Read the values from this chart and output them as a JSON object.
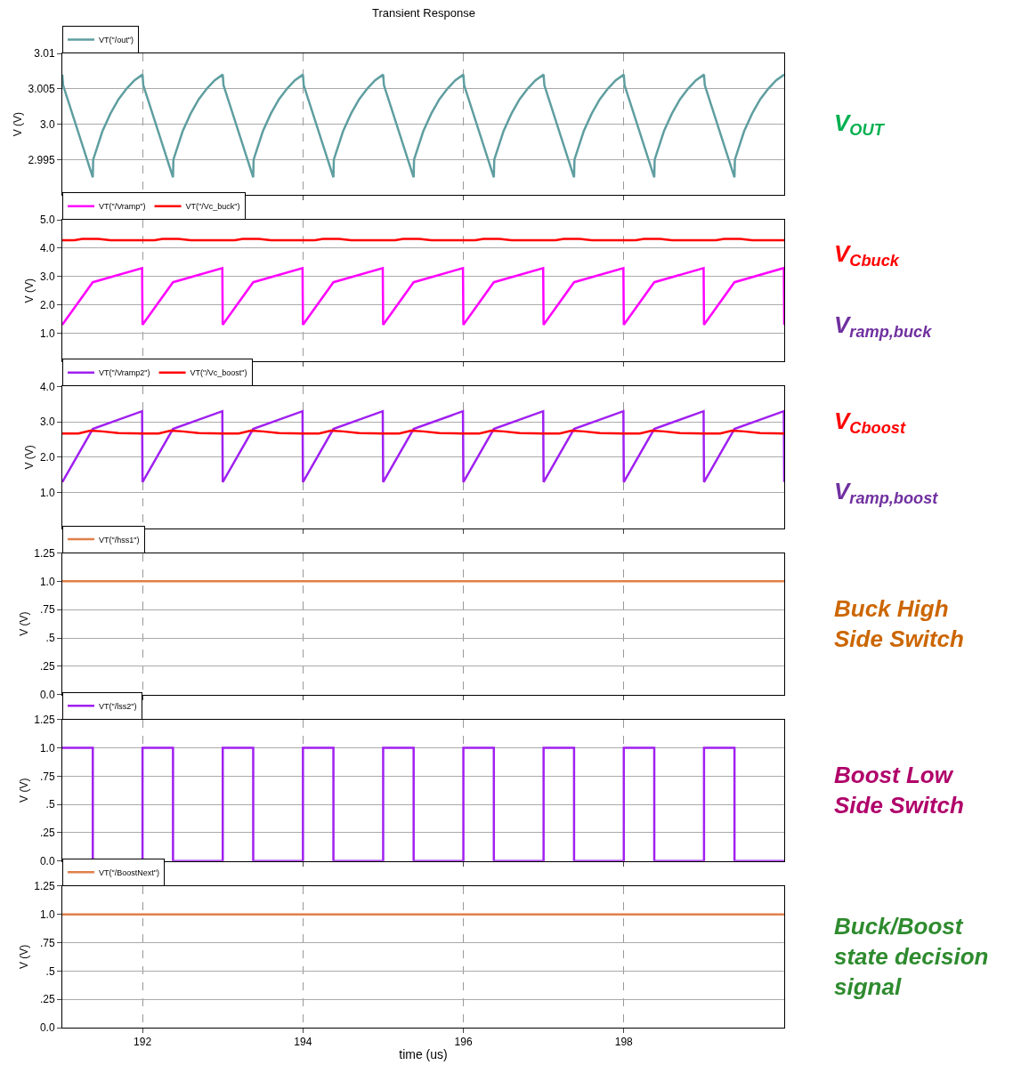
{
  "chart_data": [
    {
      "type": "line",
      "title": "Transient Response",
      "ylabel": "V (V)",
      "xlim": [
        191,
        200
      ],
      "xticks": [
        192,
        194,
        196,
        198
      ],
      "ylim": [
        2.99,
        3.01
      ],
      "yticks": [
        2.995,
        {
          "value": 3,
          "label": "3.0"
        },
        3.005,
        3.01
      ],
      "grid": true,
      "legend": "top left",
      "tick_labels": "y",
      "annotations": [
        "V$_{OUT}$"
      ],
      "series": [
        {
          "name": "VT(\"/out\")",
          "color": "#5f9ea0",
          "x": [
            191,
            191.01,
            191.38,
            191.385,
            191.5,
            191.6,
            191.7,
            191.8,
            191.9,
            192,
            192.01,
            192.38,
            192.385,
            192.5,
            192.6,
            192.7,
            192.8,
            192.9,
            193,
            193.01,
            193.38,
            193.385,
            193.5,
            193.6,
            193.7,
            193.8,
            193.9,
            194,
            194.01,
            194.38,
            194.385,
            194.5,
            194.6,
            194.7,
            194.8,
            194.9,
            195,
            195.01,
            195.38,
            195.385,
            195.5,
            195.6,
            195.7,
            195.8,
            195.9,
            196,
            196.01,
            196.38,
            196.385,
            196.5,
            196.6,
            196.7,
            196.8,
            196.9,
            197,
            197.01,
            197.38,
            197.385,
            197.5,
            197.6,
            197.7,
            197.8,
            197.9,
            198,
            198.01,
            198.38,
            198.385,
            198.5,
            198.6,
            198.7,
            198.8,
            198.9,
            199,
            199.01,
            199.38,
            199.385,
            199.5,
            199.6,
            199.7,
            199.8,
            199.9,
            200
          ],
          "values": [
            3.007,
            3.0055,
            2.9925,
            2.995,
            2.999,
            3.0015,
            3.0035,
            3.005,
            3.0062,
            3.007,
            3.0055,
            2.9925,
            2.995,
            2.999,
            3.0015,
            3.0035,
            3.005,
            3.0062,
            3.007,
            3.0055,
            2.9925,
            2.995,
            2.999,
            3.0015,
            3.0035,
            3.005,
            3.0062,
            3.007,
            3.0055,
            2.9925,
            2.995,
            2.999,
            3.0015,
            3.0035,
            3.005,
            3.0062,
            3.007,
            3.0055,
            2.9925,
            2.995,
            2.999,
            3.0015,
            3.0035,
            3.005,
            3.0062,
            3.007,
            3.0055,
            2.9925,
            2.995,
            2.999,
            3.0015,
            3.0035,
            3.005,
            3.0062,
            3.007,
            3.0055,
            2.9925,
            2.995,
            2.999,
            3.0015,
            3.0035,
            3.005,
            3.0062,
            3.007,
            3.0055,
            2.9925,
            2.995,
            2.999,
            3.0015,
            3.0035,
            3.005,
            3.0062,
            3.007,
            3.0055,
            2.9925,
            2.995,
            2.999,
            3.0015,
            3.0035,
            3.005,
            3.0062,
            3.007
          ]
        }
      ]
    },
    {
      "type": "line",
      "ylabel": "V (V)",
      "xlim": [
        191,
        200
      ],
      "xticks": [
        192,
        194,
        196,
        198
      ],
      "ylim": [
        0,
        5
      ],
      "yticks": [
        {
          "value": 1,
          "label": "1.0"
        },
        {
          "value": 2,
          "label": "2.0"
        },
        {
          "value": 3,
          "label": "3.0"
        },
        {
          "value": 4,
          "label": "4.0"
        },
        {
          "value": 5,
          "label": "5.0"
        }
      ],
      "grid": true,
      "legend": "top left",
      "tick_labels": "y",
      "annotations": [
        "V$_{Cbuck}$",
        "V$_{ramp,buck}$"
      ],
      "series": [
        {
          "name": "VT(\"/Vramp\")",
          "color": "#ff00ff",
          "x": [
            191,
            191.38,
            191.995,
            192,
            192.38,
            192.995,
            193,
            193.38,
            193.995,
            194,
            194.38,
            194.995,
            195,
            195.38,
            195.995,
            196,
            196.38,
            196.995,
            197,
            197.38,
            197.995,
            198,
            198.38,
            198.995,
            199,
            199.38,
            199.995,
            200
          ],
          "values": [
            1.3,
            2.8,
            3.3,
            1.3,
            2.8,
            3.3,
            1.3,
            2.8,
            3.3,
            1.3,
            2.8,
            3.3,
            1.3,
            2.8,
            3.3,
            1.3,
            2.8,
            3.3,
            1.3,
            2.8,
            3.3,
            1.3,
            2.8,
            3.3,
            1.3,
            2.8,
            3.3,
            1.3
          ]
        },
        {
          "name": "VT(\"/Vc_buck\")",
          "color": "#ff0000",
          "x": [
            191,
            191.15,
            191.25,
            191.45,
            191.6,
            192,
            192.15,
            192.25,
            192.45,
            192.6,
            193,
            193.15,
            193.25,
            193.45,
            193.6,
            194,
            194.15,
            194.25,
            194.45,
            194.6,
            195,
            195.15,
            195.25,
            195.45,
            195.6,
            196,
            196.15,
            196.25,
            196.45,
            196.6,
            197,
            197.15,
            197.25,
            197.45,
            197.6,
            198,
            198.15,
            198.25,
            198.45,
            198.6,
            199,
            199.15,
            199.25,
            199.45,
            199.6,
            200
          ],
          "values": [
            4.28,
            4.28,
            4.33,
            4.33,
            4.28,
            4.28,
            4.28,
            4.33,
            4.33,
            4.28,
            4.28,
            4.28,
            4.33,
            4.33,
            4.28,
            4.28,
            4.28,
            4.33,
            4.33,
            4.28,
            4.28,
            4.28,
            4.33,
            4.33,
            4.28,
            4.28,
            4.28,
            4.33,
            4.33,
            4.28,
            4.28,
            4.28,
            4.33,
            4.33,
            4.28,
            4.28,
            4.28,
            4.33,
            4.33,
            4.28,
            4.28,
            4.28,
            4.33,
            4.33,
            4.28,
            4.28
          ]
        }
      ]
    },
    {
      "type": "line",
      "ylabel": "V (V)",
      "xlim": [
        191,
        200
      ],
      "xticks": [
        192,
        194,
        196,
        198
      ],
      "ylim": [
        0,
        4
      ],
      "yticks": [
        {
          "value": 1,
          "label": "1.0"
        },
        {
          "value": 2,
          "label": "2.0"
        },
        {
          "value": 3,
          "label": "3.0"
        },
        {
          "value": 4,
          "label": "4.0"
        }
      ],
      "grid": true,
      "legend": "top left",
      "tick_labels": "y",
      "annotations": [
        "V$_{Cboost}$",
        "V$_{ramp,boost}$"
      ],
      "series": [
        {
          "name": "VT(\"/Vramp2\")",
          "color": "#a020f0",
          "x": [
            191,
            191.38,
            191.995,
            192,
            192.38,
            192.995,
            193,
            193.38,
            193.995,
            194,
            194.38,
            194.995,
            195,
            195.38,
            195.995,
            196,
            196.38,
            196.995,
            197,
            197.38,
            197.995,
            198,
            198.38,
            198.995,
            199,
            199.38,
            199.995,
            200
          ],
          "values": [
            1.3,
            2.8,
            3.3,
            1.3,
            2.8,
            3.3,
            1.3,
            2.8,
            3.3,
            1.3,
            2.8,
            3.3,
            1.3,
            2.8,
            3.3,
            1.3,
            2.8,
            3.3,
            1.3,
            2.8,
            3.3,
            1.3,
            2.8,
            3.3,
            1.3,
            2.8,
            3.3,
            1.3
          ]
        },
        {
          "name": "VT(\"/Vc_boost\")",
          "color": "#ff0000",
          "x": [
            191,
            191.2,
            191.35,
            191.5,
            191.7,
            192,
            192.2,
            192.35,
            192.5,
            192.7,
            193,
            193.2,
            193.35,
            193.5,
            193.7,
            194,
            194.2,
            194.35,
            194.5,
            194.7,
            195,
            195.2,
            195.35,
            195.5,
            195.7,
            196,
            196.2,
            196.35,
            196.5,
            196.7,
            197,
            197.2,
            197.35,
            197.5,
            197.7,
            198,
            198.2,
            198.35,
            198.5,
            198.7,
            199,
            199.2,
            199.35,
            199.5,
            199.7,
            200
          ],
          "values": [
            2.67,
            2.67,
            2.75,
            2.73,
            2.68,
            2.67,
            2.67,
            2.75,
            2.73,
            2.68,
            2.67,
            2.67,
            2.75,
            2.73,
            2.68,
            2.67,
            2.67,
            2.75,
            2.73,
            2.68,
            2.67,
            2.67,
            2.75,
            2.73,
            2.68,
            2.67,
            2.67,
            2.75,
            2.73,
            2.68,
            2.67,
            2.67,
            2.75,
            2.73,
            2.68,
            2.67,
            2.67,
            2.75,
            2.73,
            2.68,
            2.67,
            2.67,
            2.75,
            2.73,
            2.68,
            2.67
          ]
        }
      ]
    },
    {
      "type": "line",
      "ylabel": "V (V)",
      "xlim": [
        191,
        200
      ],
      "xticks": [
        192,
        194,
        196,
        198
      ],
      "ylim": [
        0,
        1.25
      ],
      "yticks": [
        {
          "value": 0,
          "label": "0.0"
        },
        {
          "value": 0.25,
          "label": ".25"
        },
        {
          "value": 0.5,
          "label": ".5"
        },
        {
          "value": 0.75,
          "label": ".75"
        },
        {
          "value": 1,
          "label": "1.0"
        },
        1.25
      ],
      "grid": true,
      "legend": "top left",
      "tick_labels": "y",
      "annotations": [
        "Buck High\nSide Switch"
      ],
      "series": [
        {
          "name": "VT(\"/hss1\")",
          "color": "#e0804a",
          "x": [
            191,
            200
          ],
          "values": [
            1.0,
            1.0
          ]
        }
      ]
    },
    {
      "type": "step",
      "ylabel": "V (V)",
      "xlim": [
        191,
        200
      ],
      "xticks": [
        192,
        194,
        196,
        198
      ],
      "ylim": [
        0,
        1.25
      ],
      "yticks": [
        {
          "value": 0,
          "label": "0.0"
        },
        {
          "value": 0.25,
          "label": ".25"
        },
        {
          "value": 0.5,
          "label": ".5"
        },
        {
          "value": 0.75,
          "label": ".75"
        },
        {
          "value": 1,
          "label": "1.0"
        },
        1.25
      ],
      "grid": true,
      "legend": "top left",
      "tick_labels": "y",
      "annotations": [
        "Boost Low\nSide Switch"
      ],
      "series": [
        {
          "name": "VT(\"/lss2\")",
          "color": "#a020f0",
          "x": [
            191,
            191.38,
            192,
            192.38,
            193,
            193.38,
            194,
            194.38,
            195,
            195.38,
            196,
            196.38,
            197,
            197.38,
            198,
            198.38,
            199,
            199.38,
            200
          ],
          "values": [
            1.0,
            0.0,
            1.0,
            0.0,
            1.0,
            0.0,
            1.0,
            0.0,
            1.0,
            0.0,
            1.0,
            0.0,
            1.0,
            0.0,
            1.0,
            0.0,
            1.0,
            0.0,
            0.0
          ]
        }
      ]
    },
    {
      "type": "line",
      "ylabel": "V (V)",
      "xlabel": "time (us)",
      "xlim": [
        191,
        200
      ],
      "xticks": [
        192,
        194,
        196,
        198
      ],
      "ylim": [
        0,
        1.25
      ],
      "yticks": [
        {
          "value": 0,
          "label": "0.0"
        },
        {
          "value": 0.25,
          "label": ".25"
        },
        {
          "value": 0.5,
          "label": ".5"
        },
        {
          "value": 0.75,
          "label": ".75"
        },
        {
          "value": 1,
          "label": "1.0"
        },
        1.25
      ],
      "grid": true,
      "legend": "top left",
      "annotations": [
        "Buck/Boost\nstate decision\nsignal"
      ],
      "series": [
        {
          "name": "VT(\"/BoostNext\")",
          "color": "#e0804a",
          "x": [
            191,
            200
          ],
          "values": [
            1.0,
            1.0
          ]
        }
      ]
    }
  ]
}
